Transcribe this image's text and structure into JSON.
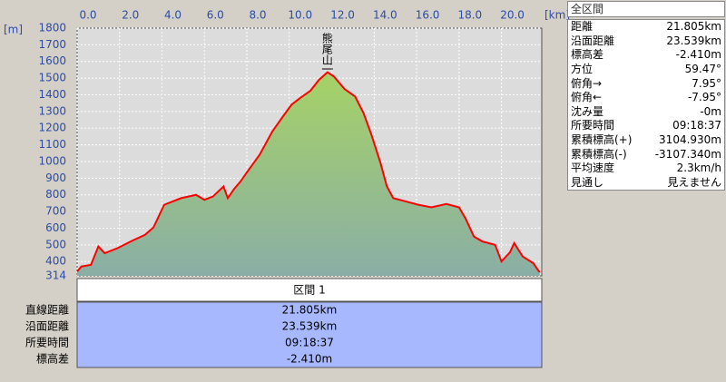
{
  "chart_data": {
    "type": "area",
    "x_unit": "[km]",
    "y_unit": "[m]",
    "x": [
      0,
      0.2,
      0.65,
      1.0,
      1.3,
      1.9,
      2.6,
      3.2,
      3.6,
      4.1,
      4.5,
      4.9,
      5.6,
      6.0,
      6.4,
      6.9,
      7.1,
      7.4,
      7.7,
      8.0,
      8.6,
      9.2,
      9.7,
      10.1,
      10.5,
      11.0,
      11.4,
      11.8,
      12.1,
      12.6,
      13.1,
      13.5,
      13.9,
      14.3,
      14.6,
      14.9,
      15.5,
      16.1,
      16.7,
      17.4,
      18.0,
      18.3,
      18.7,
      19.1,
      19.7,
      20.0,
      20.4,
      20.6,
      21.0,
      21.5,
      21.8
    ],
    "y": [
      340,
      370,
      380,
      490,
      450,
      480,
      525,
      560,
      605,
      740,
      760,
      780,
      800,
      770,
      790,
      850,
      780,
      835,
      880,
      935,
      1040,
      1180,
      1270,
      1340,
      1380,
      1425,
      1490,
      1535,
      1510,
      1435,
      1390,
      1290,
      1150,
      990,
      850,
      780,
      760,
      740,
      725,
      745,
      725,
      660,
      550,
      520,
      500,
      400,
      455,
      510,
      430,
      390,
      335
    ],
    "color": "#ff0000",
    "xlim": [
      0,
      21.9
    ],
    "ylim": [
      314,
      1800
    ],
    "xticks": [
      {
        "value": 0,
        "label": "0.0"
      },
      {
        "value": 2,
        "label": "2.0"
      },
      {
        "value": 4,
        "label": "4.0"
      },
      {
        "value": 6,
        "label": "6.0"
      },
      {
        "value": 8,
        "label": "8.0"
      },
      {
        "value": 10,
        "label": "10.0"
      },
      {
        "value": 12,
        "label": "12.0"
      },
      {
        "value": 14,
        "label": "14.0"
      },
      {
        "value": 16,
        "label": "16.0"
      },
      {
        "value": 18,
        "label": "18.0"
      },
      {
        "value": 20,
        "label": "20.0"
      }
    ],
    "yticks": [
      314,
      400,
      500,
      600,
      700,
      800,
      900,
      1000,
      1100,
      1200,
      1300,
      1400,
      1500,
      1600,
      1700,
      1800
    ],
    "grid": true,
    "annotations": [
      {
        "text": "熊尾山",
        "x": 11.8
      }
    ]
  },
  "summary_panel": {
    "title": "全区間",
    "rows": [
      [
        "距離",
        "21.805km"
      ],
      [
        "沿面距離",
        "23.539km"
      ],
      [
        "標高差",
        "-2.410m"
      ],
      [
        "方位",
        "59.47°"
      ],
      [
        "俯角→",
        "7.95°"
      ],
      [
        "俯角←",
        "-7.95°"
      ],
      [
        "沈み量",
        "-0m"
      ],
      [
        "所要時間",
        "09:18:37"
      ],
      [
        "累積標高(+)",
        "3104.930m"
      ],
      [
        "累積標高(-)",
        "-3107.340m"
      ],
      [
        "平均速度",
        "2.3km/h"
      ],
      [
        "見通し",
        "見えません"
      ]
    ]
  },
  "section_panel": {
    "title": "区間 1",
    "rows": [
      [
        "直線距離",
        "21.805km"
      ],
      [
        "沿面距離",
        "23.539km"
      ],
      [
        "所要時間",
        "09:18:37"
      ],
      [
        "標高差",
        "-2.410m"
      ]
    ]
  }
}
